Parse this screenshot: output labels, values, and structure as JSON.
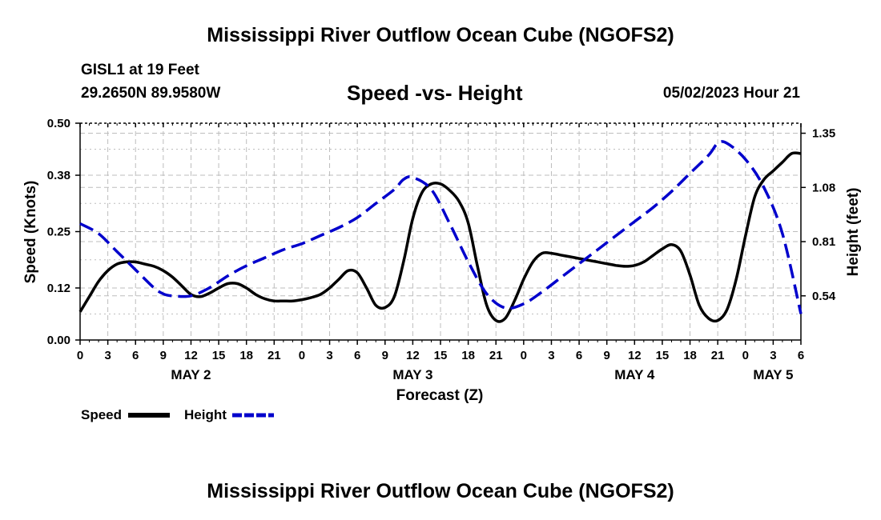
{
  "header": {
    "title": "Mississippi River Outflow Ocean Cube (NGOFS2)",
    "station": "GISL1 at 19 Feet",
    "coords": "29.2650N  89.9580W",
    "subtitle": "Speed -vs- Height",
    "timestamp": "05/02/2023 Hour 21"
  },
  "footer": {
    "title": "Mississippi River Outflow Ocean Cube (NGOFS2)"
  },
  "legend": {
    "speed": "Speed",
    "height": "Height"
  },
  "colors": {
    "speed": "#000000",
    "height": "#0000cc",
    "grid": "#bdbdbd"
  },
  "chart_data": {
    "type": "line",
    "title": "Speed -vs- Height",
    "xlabel": "Forecast (Z)",
    "ylabel": "Speed (Knots)",
    "ylabel_right": "Height (feet)",
    "x_unit": "hours since 00Z May 2",
    "xlim": [
      0,
      78
    ],
    "ylim": [
      0,
      0.5
    ],
    "ylim_right": [
      0.32,
      1.4
    ],
    "yticks": [
      0.0,
      0.12,
      0.25,
      0.38,
      0.5
    ],
    "ytick_labels": [
      "0.00",
      "0.12",
      "0.25",
      "0.38",
      "0.50"
    ],
    "yticks_right": [
      0.54,
      0.81,
      1.08,
      1.35
    ],
    "ytick_labels_right": [
      "0.54",
      "0.81",
      "1.08",
      "1.35"
    ],
    "xticks": [
      0,
      3,
      6,
      9,
      12,
      15,
      18,
      21,
      24,
      27,
      30,
      33,
      36,
      39,
      42,
      45,
      48,
      51,
      54,
      57,
      60,
      63,
      66,
      69,
      72,
      75,
      78
    ],
    "xtick_labels": [
      "0",
      "3",
      "6",
      "9",
      "12",
      "15",
      "18",
      "21",
      "0",
      "3",
      "6",
      "9",
      "12",
      "15",
      "18",
      "21",
      "0",
      "3",
      "6",
      "9",
      "12",
      "15",
      "18",
      "21",
      "0",
      "3",
      "6"
    ],
    "day_labels": [
      {
        "x": 12,
        "label": "MAY 2"
      },
      {
        "x": 36,
        "label": "MAY 3"
      },
      {
        "x": 60,
        "label": "MAY 4"
      },
      {
        "x": 75,
        "label": "MAY 5"
      }
    ],
    "grid": true,
    "legend_position": "bottom-left",
    "series": [
      {
        "name": "Speed",
        "axis": "left",
        "style": "solid",
        "x": [
          0,
          1,
          2,
          3,
          4,
          5,
          6,
          7,
          8,
          9,
          10,
          11,
          12,
          13,
          14,
          15,
          16,
          17,
          18,
          19,
          20,
          21,
          22,
          23,
          24,
          25,
          26,
          27,
          28,
          29,
          30,
          31,
          32,
          33,
          34,
          35,
          36,
          37,
          38,
          39,
          40,
          41,
          42,
          43,
          44,
          45,
          46,
          47,
          48,
          49,
          50,
          51,
          52,
          53,
          54,
          55,
          56,
          57,
          58,
          59,
          60,
          61,
          62,
          63,
          64,
          65,
          66,
          67,
          68,
          69,
          70,
          71,
          72,
          73,
          74,
          75,
          76,
          77,
          78
        ],
        "values": [
          0.065,
          0.1,
          0.135,
          0.16,
          0.175,
          0.18,
          0.18,
          0.175,
          0.17,
          0.16,
          0.145,
          0.125,
          0.105,
          0.1,
          0.108,
          0.12,
          0.13,
          0.13,
          0.12,
          0.105,
          0.095,
          0.09,
          0.09,
          0.09,
          0.093,
          0.098,
          0.105,
          0.12,
          0.14,
          0.16,
          0.155,
          0.12,
          0.08,
          0.075,
          0.1,
          0.18,
          0.28,
          0.34,
          0.36,
          0.36,
          0.345,
          0.32,
          0.27,
          0.17,
          0.08,
          0.045,
          0.05,
          0.09,
          0.14,
          0.18,
          0.2,
          0.2,
          0.196,
          0.192,
          0.188,
          0.184,
          0.18,
          0.176,
          0.172,
          0.17,
          0.172,
          0.18,
          0.195,
          0.21,
          0.22,
          0.205,
          0.15,
          0.08,
          0.05,
          0.045,
          0.07,
          0.14,
          0.24,
          0.33,
          0.37,
          0.39,
          0.41,
          0.43,
          0.43
        ]
      },
      {
        "name": "Height",
        "axis": "right",
        "style": "dashed",
        "x": [
          0,
          2,
          4,
          6,
          8,
          9,
          10,
          12,
          14,
          16,
          18,
          20,
          22,
          24,
          26,
          28,
          30,
          32,
          34,
          35,
          36,
          38,
          40,
          42,
          44,
          46,
          48,
          50,
          52,
          54,
          56,
          58,
          60,
          62,
          64,
          66,
          68,
          69,
          70,
          72,
          74,
          76,
          78
        ],
        "values": [
          0.9,
          0.85,
          0.76,
          0.67,
          0.58,
          0.55,
          0.54,
          0.54,
          0.58,
          0.64,
          0.69,
          0.73,
          0.77,
          0.8,
          0.84,
          0.88,
          0.93,
          1.0,
          1.07,
          1.12,
          1.13,
          1.07,
          0.9,
          0.71,
          0.55,
          0.48,
          0.5,
          0.56,
          0.63,
          0.7,
          0.77,
          0.84,
          0.91,
          0.98,
          1.06,
          1.15,
          1.24,
          1.3,
          1.3,
          1.22,
          1.08,
          0.85,
          0.45
        ]
      }
    ]
  }
}
